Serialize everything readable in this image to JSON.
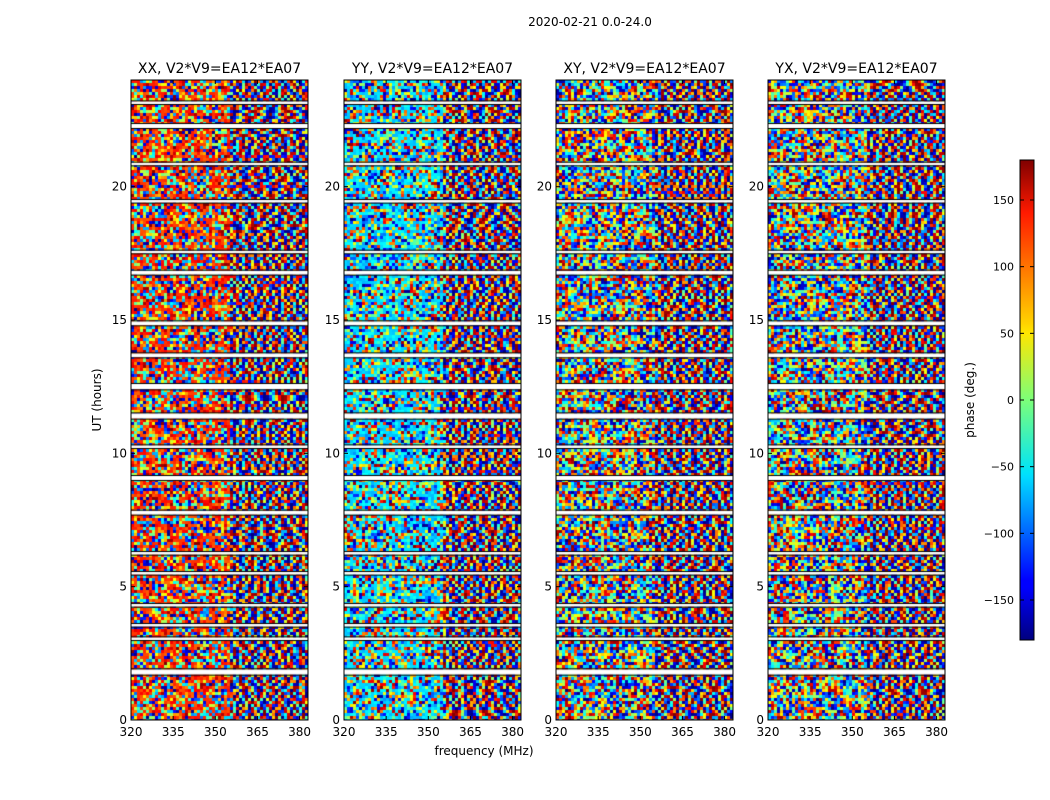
{
  "figure": {
    "suptitle": "2020-02-21 0.0-24.0",
    "xlabel": "frequency (MHz)",
    "ylabel": "UT (hours)",
    "colorbar_label": "phase (deg.)"
  },
  "chart_data": {
    "type": "heatmap",
    "colormap": "jet",
    "panels": [
      {
        "title": "XX, V2*V9=EA12*EA07",
        "seed": 11,
        "tint": 0.9
      },
      {
        "title": "YY, V2*V9=EA12*EA07",
        "seed": 23,
        "tint": -0.7
      },
      {
        "title": "XY, V2*V9=EA12*EA07",
        "seed": 37,
        "tint": 0.0
      },
      {
        "title": "YX, V2*V9=EA12*EA07",
        "seed": 53,
        "tint": 0.0
      }
    ],
    "x": {
      "label": "frequency (MHz)",
      "range": [
        320,
        383
      ],
      "ticks": [
        320,
        335,
        350,
        365,
        380
      ],
      "tick_labels": [
        "320",
        "335",
        "350",
        "365",
        "380"
      ]
    },
    "y": {
      "label": "UT (hours)",
      "range": [
        0,
        24
      ],
      "ticks": [
        0,
        5,
        10,
        15,
        20
      ],
      "tick_labels": [
        "0",
        "5",
        "10",
        "15",
        "20"
      ]
    },
    "colorbar": {
      "label": "phase (deg.)",
      "range": [
        -180,
        180
      ],
      "ticks": [
        -150,
        -100,
        -50,
        0,
        50,
        100,
        150
      ],
      "tick_labels": [
        "−150",
        "−100",
        "−50",
        "0",
        "50",
        "100",
        "150"
      ]
    },
    "flagged_bands_hours": [
      [
        1.7,
        1.9
      ],
      [
        3.0,
        3.1
      ],
      [
        3.5,
        3.6
      ],
      [
        4.25,
        4.35
      ],
      [
        5.45,
        5.55
      ],
      [
        6.2,
        6.3
      ],
      [
        7.7,
        7.85
      ],
      [
        9.0,
        9.15
      ],
      [
        10.2,
        10.3
      ],
      [
        11.3,
        11.5
      ],
      [
        12.4,
        12.6
      ],
      [
        13.6,
        13.75
      ],
      [
        14.8,
        14.95
      ],
      [
        16.7,
        16.85
      ],
      [
        17.5,
        17.6
      ],
      [
        19.4,
        19.5
      ],
      [
        20.8,
        20.9
      ],
      [
        22.2,
        22.35
      ],
      [
        23.1,
        23.2
      ]
    ]
  }
}
